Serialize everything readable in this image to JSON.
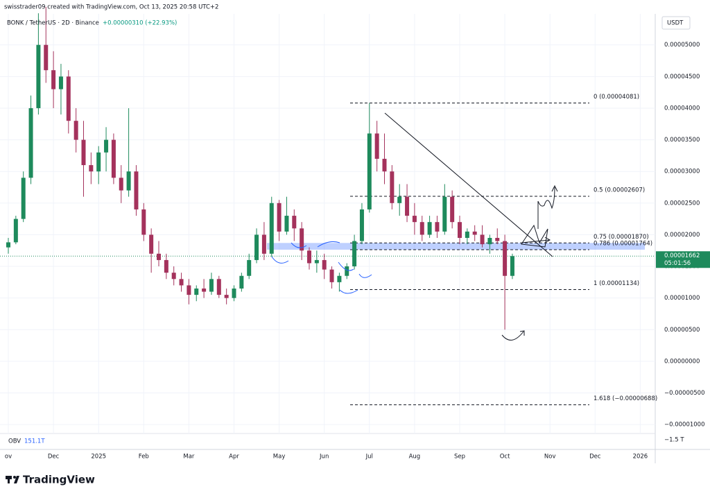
{
  "chart_data": {
    "type": "candlestick",
    "header": "swisstrader09 created with TradingView.com, Oct 13, 2025 20:58 UTC+2",
    "title": "BONK / TetherUS · 2D · Binance",
    "change": "+0.00000310 (+22.93%)",
    "currency": "USDT",
    "up_color": "#1e8a5c",
    "down_color": "#a4325c",
    "categories": [
      "ov",
      null,
      null,
      null,
      null,
      null,
      "Dec",
      null,
      null,
      null,
      null,
      null,
      "2025",
      null,
      null,
      null,
      null,
      null,
      "Feb",
      null,
      null,
      null,
      null,
      null,
      "Mar",
      null,
      null,
      null,
      null,
      null,
      "Apr",
      null,
      null,
      null,
      null,
      null,
      "May",
      null,
      null,
      null,
      null,
      null,
      "Jun",
      null,
      null,
      null,
      null,
      null,
      "Jul",
      null,
      null,
      null,
      null,
      null,
      "Aug",
      null,
      null,
      null,
      null,
      null,
      "Sep",
      null,
      null,
      null,
      null,
      null,
      "Oct",
      null,
      null,
      null,
      null,
      null,
      "Nov",
      null,
      null,
      null,
      null,
      null,
      "Dec",
      null,
      null,
      null,
      null,
      null,
      "2026",
      null
    ],
    "ohlc": [
      [
        1.8e-05,
        1.95e-05,
        1.7e-05,
        1.88e-05
      ],
      [
        1.88e-05,
        2.3e-05,
        1.85e-05,
        2.25e-05
      ],
      [
        2.25e-05,
        3e-05,
        2.2e-05,
        2.9e-05
      ],
      [
        2.9e-05,
        4.2e-05,
        2.8e-05,
        4e-05
      ],
      [
        4e-05,
        5.5e-05,
        3.9e-05,
        5e-05
      ],
      [
        5e-05,
        5.6e-05,
        4.4e-05,
        4.6e-05
      ],
      [
        4.6e-05,
        4.9e-05,
        4e-05,
        4.3e-05
      ],
      [
        4.3e-05,
        4.7e-05,
        3.9e-05,
        4.5e-05
      ],
      [
        4.5e-05,
        4.6e-05,
        3.6e-05,
        3.8e-05
      ],
      [
        3.8e-05,
        4e-05,
        3.3e-05,
        3.5e-05
      ],
      [
        3.5e-05,
        3.8e-05,
        2.6e-05,
        3.1e-05
      ],
      [
        3.1e-05,
        3.3e-05,
        2.8e-05,
        3e-05
      ],
      [
        3e-05,
        3.4e-05,
        2.8e-05,
        3.3e-05
      ],
      [
        3.3e-05,
        3.7e-05,
        3e-05,
        3.5e-05
      ],
      [
        3.5e-05,
        3.6e-05,
        2.8e-05,
        2.9e-05
      ],
      [
        2.9e-05,
        3.1e-05,
        2.5e-05,
        2.7e-05
      ],
      [
        2.7e-05,
        4e-05,
        2.6e-05,
        3e-05
      ],
      [
        3e-05,
        3.1e-05,
        2.3e-05,
        2.4e-05
      ],
      [
        2.4e-05,
        2.5e-05,
        1.9e-05,
        2e-05
      ],
      [
        2e-05,
        2.1e-05,
        1.4e-05,
        1.7e-05
      ],
      [
        1.7e-05,
        1.9e-05,
        1.5e-05,
        1.6e-05
      ],
      [
        1.6e-05,
        1.7e-05,
        1.3e-05,
        1.4e-05
      ],
      [
        1.4e-05,
        1.5e-05,
        1.2e-05,
        1.3e-05
      ],
      [
        1.3e-05,
        1.4e-05,
        1.1e-05,
        1.2e-05
      ],
      [
        1.2e-05,
        1.3e-05,
        9e-06,
        1.05e-05
      ],
      [
        1.05e-05,
        1.2e-05,
        9.5e-06,
        1.15e-05
      ],
      [
        1.15e-05,
        1.3e-05,
        1e-05,
        1.1e-05
      ],
      [
        1.1e-05,
        1.4e-05,
        1.05e-05,
        1.3e-05
      ],
      [
        1.3e-05,
        1.35e-05,
        1e-05,
        1.05e-05
      ],
      [
        1.05e-05,
        1.15e-05,
        9e-06,
        1e-05
      ],
      [
        1e-05,
        1.2e-05,
        9.5e-06,
        1.15e-05
      ],
      [
        1.15e-05,
        1.4e-05,
        1.1e-05,
        1.35e-05
      ],
      [
        1.35e-05,
        1.7e-05,
        1.3e-05,
        1.6e-05
      ],
      [
        1.6e-05,
        2.1e-05,
        1.55e-05,
        2e-05
      ],
      [
        2e-05,
        2.2e-05,
        1.6e-05,
        1.7e-05
      ],
      [
        1.7e-05,
        2.6e-05,
        1.65e-05,
        2.5e-05
      ],
      [
        2.5e-05,
        2.55e-05,
        1.9e-05,
        2.05e-05
      ],
      [
        2.05e-05,
        2.6e-05,
        2e-05,
        2.3e-05
      ],
      [
        2.3e-05,
        2.4e-05,
        1.9e-05,
        2.1e-05
      ],
      [
        2.1e-05,
        2.2e-05,
        1.6e-05,
        1.75e-05
      ],
      [
        1.75e-05,
        1.8e-05,
        1.45e-05,
        1.55e-05
      ],
      [
        1.55e-05,
        1.75e-05,
        1.4e-05,
        1.6e-05
      ],
      [
        1.6e-05,
        1.7e-05,
        1.3e-05,
        1.45e-05
      ],
      [
        1.45e-05,
        1.5e-05,
        1.15e-05,
        1.25e-05
      ],
      [
        1.25e-05,
        1.4e-05,
        1.1e-05,
        1.35e-05
      ],
      [
        1.35e-05,
        1.55e-05,
        1.3e-05,
        1.5e-05
      ],
      [
        1.5e-05,
        2e-05,
        1.45e-05,
        1.9e-05
      ],
      [
        1.9e-05,
        2.5e-05,
        1.85e-05,
        2.4e-05
      ],
      [
        2.4e-05,
        4.081e-05,
        2.35e-05,
        3.6e-05
      ],
      [
        3.6e-05,
        3.8e-05,
        3e-05,
        3.2e-05
      ],
      [
        3.2e-05,
        3.6e-05,
        2.8e-05,
        3e-05
      ],
      [
        3e-05,
        3.1e-05,
        2.4e-05,
        2.5e-05
      ],
      [
        2.5e-05,
        2.8e-05,
        2.3e-05,
        2.6e-05
      ],
      [
        2.6e-05,
        2.8e-05,
        2.2e-05,
        2.3e-05
      ],
      [
        2.3e-05,
        2.5e-05,
        2e-05,
        2.2e-05
      ],
      [
        2.2e-05,
        2.3e-05,
        1.9e-05,
        2e-05
      ],
      [
        2e-05,
        2.3e-05,
        1.95e-05,
        2.2e-05
      ],
      [
        2.2e-05,
        2.3e-05,
        1.95e-05,
        2.05e-05
      ],
      [
        2.05e-05,
        2.8e-05,
        2e-05,
        2.6e-05
      ],
      [
        2.6e-05,
        2.7e-05,
        2.1e-05,
        2.2e-05
      ],
      [
        2.2e-05,
        2.3e-05,
        1.85e-05,
        1.95e-05
      ],
      [
        1.95e-05,
        2.1e-05,
        1.85e-05,
        2.05e-05
      ],
      [
        2.05e-05,
        2.15e-05,
        1.9e-05,
        2e-05
      ],
      [
        2e-05,
        2.15e-05,
        1.8e-05,
        1.85e-05
      ],
      [
        1.85e-05,
        2e-05,
        1.7e-05,
        1.95e-05
      ],
      [
        1.95e-05,
        2.1e-05,
        1.85e-05,
        1.9e-05
      ],
      [
        1.9e-05,
        2e-05,
        5e-06,
        1.35e-05
      ],
      [
        1.35e-05,
        1.7e-05,
        1.3e-05,
        1.662e-05
      ],
      null,
      null,
      null,
      null,
      null,
      null,
      null,
      null,
      null,
      null,
      null,
      null,
      null,
      null,
      null,
      null,
      null,
      null
    ],
    "ylim": [
      -1.36e-05,
      5.49e-05
    ],
    "yticks": [
      {
        "value": -1e-05,
        "label": "−0.00001000"
      },
      {
        "value": -5e-06,
        "label": "−0.00000500"
      },
      {
        "value": 0,
        "label": "0.00000000"
      },
      {
        "value": 5e-06,
        "label": "0.00000500"
      },
      {
        "value": 1e-05,
        "label": "0.00001000"
      },
      {
        "value": 1.5e-05,
        "label": "0.00001500"
      },
      {
        "value": 2e-05,
        "label": "0.00002000"
      },
      {
        "value": 2.5e-05,
        "label": "0.00002500"
      },
      {
        "value": 3e-05,
        "label": "0.00003000"
      },
      {
        "value": 3.5e-05,
        "label": "0.00003500"
      },
      {
        "value": 4e-05,
        "label": "0.00004000"
      },
      {
        "value": 4.5e-05,
        "label": "0.00004500"
      },
      {
        "value": 5e-05,
        "label": "0.00005000"
      }
    ],
    "fib_levels": [
      {
        "value": 4.081e-05,
        "label": "0 (0.00004081)"
      },
      {
        "value": 2.607e-05,
        "label": "0.5 (0.00002607)"
      },
      {
        "value": 1.87e-05,
        "label": "0.75 (0.00001870)"
      },
      {
        "value": 1.764e-05,
        "label": "0.786 (0.00001764)"
      },
      {
        "value": 1.134e-05,
        "label": "1 (0.00001134)"
      },
      {
        "value": -6.88e-06,
        "label": "1.618 (−0.00000688)"
      }
    ],
    "last_price": {
      "value": 1.662e-05,
      "label": "0.00001662",
      "countdown": "05:01:56"
    },
    "obv": {
      "label": "OBV",
      "value_label": "151.1T",
      "axis_label": "−1.5 T"
    },
    "brand": "TradingView"
  }
}
